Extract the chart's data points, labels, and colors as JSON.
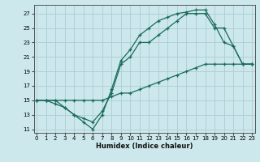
{
  "xlabel": "Humidex (Indice chaleur)",
  "bg_color": "#cce8ec",
  "grid_color": "#aacdd4",
  "line_color": "#1a6b5a",
  "xlim": [
    -0.3,
    23.3
  ],
  "ylim": [
    10.5,
    28.2
  ],
  "xticks": [
    0,
    1,
    2,
    3,
    4,
    5,
    6,
    7,
    8,
    9,
    10,
    11,
    12,
    13,
    14,
    15,
    16,
    17,
    18,
    19,
    20,
    21,
    22,
    23
  ],
  "yticks": [
    11,
    13,
    15,
    17,
    19,
    21,
    23,
    25,
    27
  ],
  "line_top": {
    "x": [
      0,
      1,
      2,
      3,
      4,
      5,
      6,
      7,
      8,
      9,
      10,
      11,
      12,
      13,
      14,
      15,
      16,
      17,
      18,
      19,
      20,
      21,
      22,
      23
    ],
    "y": [
      15,
      15,
      14.5,
      14,
      13,
      12,
      11,
      13,
      16.5,
      20.5,
      22,
      24,
      25,
      26,
      26.5,
      27,
      27.2,
      27.5,
      27.5,
      25.5,
      23,
      22.5,
      20,
      20
    ]
  },
  "line_mid": {
    "x": [
      0,
      1,
      2,
      3,
      4,
      5,
      6,
      7,
      8,
      9,
      10,
      11,
      12,
      13,
      14,
      15,
      16,
      17,
      18,
      19,
      20,
      21,
      22,
      23
    ],
    "y": [
      15,
      15,
      15,
      14,
      13,
      12.5,
      12,
      13.5,
      16,
      20,
      21,
      23,
      23,
      24,
      25,
      26,
      27,
      27,
      27,
      25,
      25,
      22.5,
      20,
      20
    ]
  },
  "line_bot": {
    "x": [
      0,
      1,
      2,
      3,
      4,
      5,
      6,
      7,
      8,
      9,
      10,
      11,
      12,
      13,
      14,
      15,
      16,
      17,
      18,
      19,
      20,
      21,
      22,
      23
    ],
    "y": [
      15,
      15,
      15,
      15,
      15,
      15,
      15,
      15,
      15.5,
      16,
      16,
      16.5,
      17,
      17.5,
      18,
      18.5,
      19,
      19.5,
      20,
      20,
      20,
      20,
      20,
      20
    ]
  }
}
